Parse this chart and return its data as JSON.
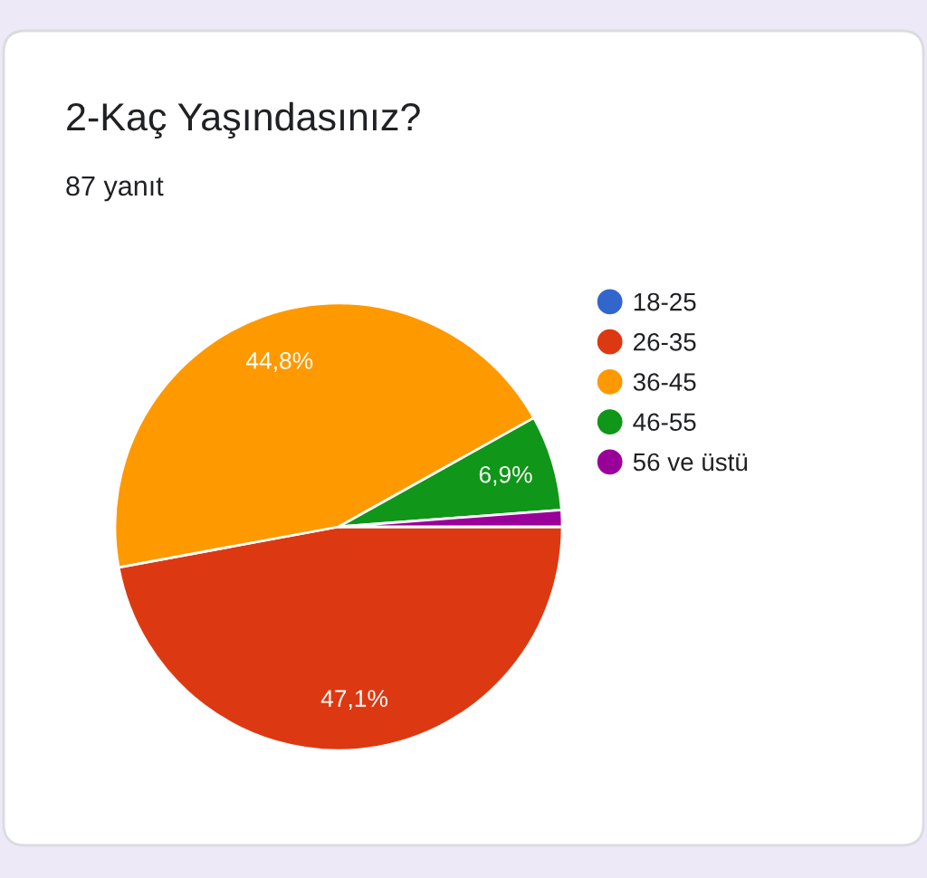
{
  "chart_data": {
    "type": "pie",
    "title": "2-Kaç Yaşındasınız?",
    "subtitle": "87 yanıt",
    "categories": [
      "18-25",
      "26-35",
      "36-45",
      "46-55",
      "56 ve üstü"
    ],
    "values": [
      0,
      47.1,
      44.8,
      6.9,
      1.2
    ],
    "colors": [
      "#3366cc",
      "#dc3912",
      "#ff9900",
      "#109618",
      "#990099"
    ],
    "value_labels": [
      null,
      "47,1%",
      "44,8%",
      "6,9%",
      null
    ],
    "legend": "right"
  }
}
